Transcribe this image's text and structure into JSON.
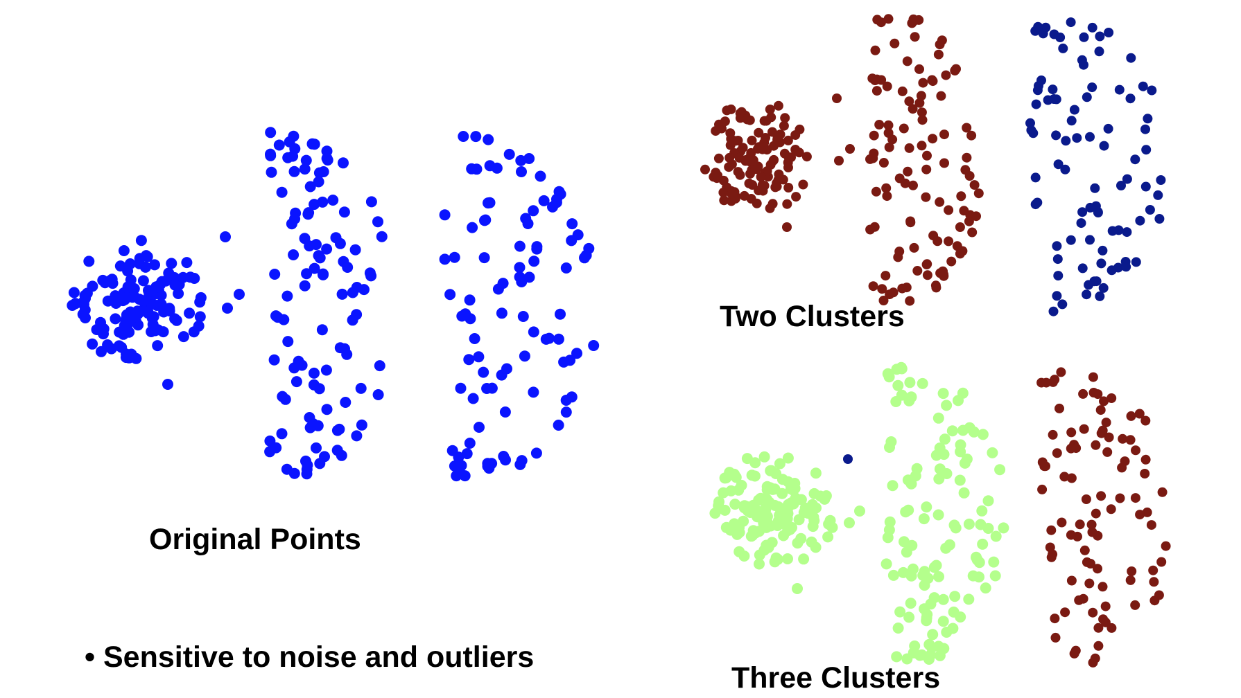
{
  "labels": {
    "original": "Original Points",
    "two": "Two Clusters",
    "three": "Three Clusters",
    "bullet": "• Sensitive to noise and outliers"
  },
  "colors": {
    "original": "#0a14ff",
    "dark_red": "#7a1a12",
    "navy": "#0a1a8c",
    "light_green": "#b4ff8c"
  }
}
